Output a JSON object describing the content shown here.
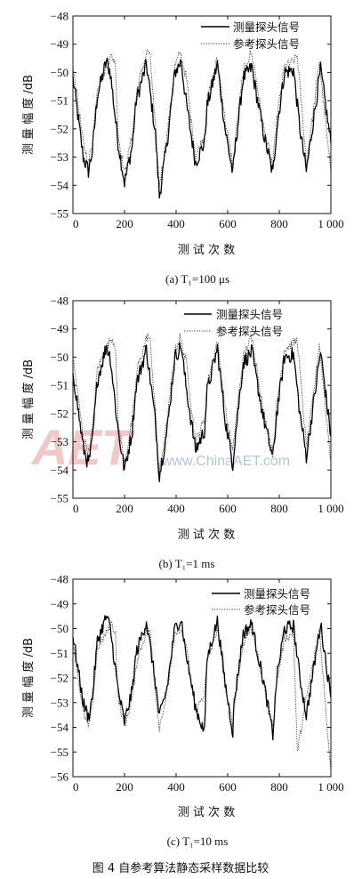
{
  "figure_caption": "图 4   自参考算法静态采样数据比较",
  "watermark": {
    "logo": "AET",
    "site": "www.ChinaAET.com",
    "brand_cn": "电子技术应用"
  },
  "chart_data": [
    {
      "type": "line",
      "caption": "(a) T₁=100 μs",
      "xlabel": "测 试 次 数",
      "ylabel": "测 量 幅 度 /dB",
      "xlim": [
        0,
        1000
      ],
      "ylim": [
        -55,
        -48
      ],
      "xticks": [
        0,
        200,
        400,
        600,
        800,
        1000
      ],
      "xtick_labels": [
        "0",
        "200",
        "400",
        "600",
        "800",
        "1 000"
      ],
      "yticks": [
        -55,
        -54,
        -53,
        -52,
        -51,
        -50,
        -49,
        -48
      ],
      "legend_position": "top-right",
      "series": [
        {
          "name": "测量探头信号",
          "style": "solid",
          "color": "#000000",
          "x": [
            0,
            40,
            60,
            75,
            95,
            130,
            145,
            175,
            200,
            230,
            245,
            285,
            320,
            335,
            365,
            395,
            420,
            435,
            475,
            510,
            520,
            560,
            590,
            620,
            625,
            660,
            695,
            700,
            740,
            775,
            790,
            820,
            855,
            880,
            905,
            935,
            960,
            1000
          ],
          "y": [
            -50.2,
            -53.0,
            -53.5,
            -52.8,
            -50.8,
            -49.6,
            -50.0,
            -52.5,
            -53.9,
            -52.6,
            -51.0,
            -49.7,
            -52.2,
            -54.4,
            -52.5,
            -50.0,
            -49.6,
            -50.8,
            -53.2,
            -52.5,
            -51.2,
            -49.7,
            -52.0,
            -53.6,
            -53.0,
            -50.2,
            -49.8,
            -50.2,
            -52.2,
            -53.6,
            -52.0,
            -50.0,
            -49.9,
            -52.0,
            -53.5,
            -51.5,
            -49.9,
            -52.5
          ]
        },
        {
          "name": "参考探头信号",
          "style": "dotted",
          "color": "#333333",
          "x": [
            0,
            40,
            60,
            75,
            95,
            150,
            165,
            175,
            200,
            230,
            250,
            290,
            300,
            320,
            335,
            365,
            395,
            415,
            440,
            475,
            510,
            520,
            560,
            590,
            620,
            625,
            660,
            690,
            700,
            740,
            775,
            790,
            820,
            855,
            870,
            905,
            935,
            955,
            1000
          ],
          "y": [
            -49.7,
            -52.5,
            -53.2,
            -52.5,
            -50.5,
            -49.4,
            -49.7,
            -52.2,
            -53.6,
            -52.2,
            -50.5,
            -49.2,
            -49.5,
            -52.0,
            -54.0,
            -52.2,
            -49.8,
            -49.3,
            -50.2,
            -53.0,
            -52.2,
            -51.0,
            -49.5,
            -51.7,
            -53.3,
            -52.7,
            -50.0,
            -49.3,
            -49.6,
            -52.0,
            -53.3,
            -51.7,
            -49.8,
            -49.6,
            -49.4,
            -53.2,
            -51.2,
            -49.6,
            -53.6
          ]
        }
      ]
    },
    {
      "type": "line",
      "caption": "(b) T₁=1 ms",
      "xlabel": "测 试 次 数",
      "ylabel": "测 量 幅 度 /dB",
      "xlim": [
        0,
        1000
      ],
      "ylim": [
        -55,
        -48
      ],
      "xticks": [
        0,
        200,
        400,
        600,
        800,
        1000
      ],
      "xtick_labels": [
        "0",
        "200",
        "400",
        "600",
        "800",
        "1 000"
      ],
      "yticks": [
        -55,
        -54,
        -53,
        -52,
        -51,
        -50,
        -49,
        -48
      ],
      "legend_position": "top-right",
      "series": [
        {
          "name": "测量探头信号",
          "style": "solid",
          "color": "#000000",
          "x": [
            0,
            40,
            60,
            75,
            95,
            130,
            145,
            175,
            200,
            230,
            245,
            285,
            320,
            335,
            365,
            395,
            420,
            435,
            475,
            510,
            520,
            560,
            590,
            620,
            625,
            660,
            695,
            700,
            740,
            775,
            790,
            820,
            855,
            880,
            905,
            935,
            960,
            1000
          ],
          "y": [
            -50.5,
            -53.2,
            -53.8,
            -53.0,
            -50.8,
            -49.6,
            -50.0,
            -52.6,
            -54.0,
            -52.6,
            -51.0,
            -49.7,
            -52.3,
            -54.2,
            -52.6,
            -50.0,
            -49.6,
            -50.8,
            -53.3,
            -52.6,
            -51.2,
            -49.7,
            -52.2,
            -53.8,
            -53.2,
            -50.2,
            -49.8,
            -50.2,
            -52.2,
            -53.6,
            -52.0,
            -50.0,
            -49.9,
            -52.0,
            -53.5,
            -51.5,
            -49.8,
            -52.8
          ]
        },
        {
          "name": "参考探头信号",
          "style": "dotted",
          "color": "#333333",
          "x": [
            0,
            40,
            60,
            75,
            95,
            150,
            165,
            175,
            200,
            230,
            250,
            290,
            300,
            320,
            335,
            365,
            395,
            415,
            440,
            475,
            510,
            520,
            560,
            590,
            620,
            625,
            660,
            690,
            700,
            740,
            775,
            790,
            820,
            855,
            870,
            905,
            935,
            955,
            1000
          ],
          "y": [
            -50.0,
            -52.8,
            -53.4,
            -52.6,
            -50.4,
            -49.3,
            -49.6,
            -52.3,
            -53.8,
            -52.2,
            -50.4,
            -49.2,
            -49.5,
            -52.0,
            -54.1,
            -52.3,
            -49.8,
            -49.3,
            -50.2,
            -53.0,
            -52.2,
            -51.0,
            -49.4,
            -51.8,
            -53.4,
            -52.8,
            -50.0,
            -49.3,
            -49.6,
            -52.0,
            -53.4,
            -51.7,
            -49.7,
            -49.5,
            -49.4,
            -53.2,
            -51.2,
            -49.5,
            -53.7
          ]
        }
      ]
    },
    {
      "type": "line",
      "caption": "(c) T₁=10 ms",
      "xlabel": "测 试 次 数",
      "ylabel": "测 量 幅 度 /dB",
      "xlim": [
        0,
        1000
      ],
      "ylim": [
        -56,
        -48
      ],
      "xticks": [
        0,
        200,
        400,
        600,
        800,
        1000
      ],
      "xtick_labels": [
        "0",
        "200",
        "400",
        "600",
        "800",
        "1 000"
      ],
      "yticks": [
        -56,
        -55,
        -54,
        -53,
        -52,
        -51,
        -50,
        -49,
        -48
      ],
      "legend_position": "top-right",
      "series": [
        {
          "name": "测量探头信号",
          "style": "solid",
          "color": "#000000",
          "x": [
            0,
            40,
            60,
            75,
            95,
            130,
            145,
            175,
            200,
            230,
            245,
            285,
            320,
            335,
            365,
            395,
            420,
            435,
            475,
            510,
            520,
            560,
            590,
            620,
            625,
            660,
            695,
            700,
            740,
            775,
            790,
            820,
            855,
            880,
            905,
            935,
            960,
            1000
          ],
          "y": [
            -50.3,
            -53.0,
            -53.6,
            -52.8,
            -50.5,
            -49.5,
            -50.0,
            -52.5,
            -53.8,
            -52.5,
            -51.0,
            -49.7,
            -52.2,
            -53.6,
            -52.4,
            -50.0,
            -49.6,
            -50.8,
            -53.2,
            -54.2,
            -51.2,
            -49.7,
            -52.2,
            -54.2,
            -53.0,
            -50.2,
            -49.8,
            -50.2,
            -52.2,
            -54.3,
            -52.0,
            -50.0,
            -49.9,
            -52.0,
            -53.5,
            -51.5,
            -49.8,
            -52.8
          ]
        },
        {
          "name": "参考探头信号",
          "style": "dotted",
          "color": "#333333",
          "x": [
            0,
            40,
            60,
            75,
            95,
            150,
            165,
            175,
            200,
            230,
            250,
            290,
            300,
            320,
            335,
            365,
            395,
            415,
            440,
            475,
            510,
            520,
            560,
            590,
            620,
            625,
            660,
            690,
            700,
            740,
            775,
            790,
            820,
            855,
            870,
            905,
            935,
            955,
            1000
          ],
          "y": [
            -50.5,
            -53.4,
            -54.0,
            -53.2,
            -50.8,
            -49.8,
            -50.2,
            -52.8,
            -54.0,
            -52.8,
            -51.2,
            -50.0,
            -50.2,
            -52.6,
            -54.0,
            -52.6,
            -50.3,
            -50.0,
            -50.8,
            -53.4,
            -52.6,
            -51.4,
            -50.0,
            -52.3,
            -54.0,
            -53.2,
            -50.6,
            -50.0,
            -50.2,
            -52.4,
            -54.0,
            -52.2,
            -50.4,
            -50.2,
            -55.0,
            -52.8,
            -51.2,
            -50.0,
            -55.8
          ]
        }
      ]
    }
  ]
}
